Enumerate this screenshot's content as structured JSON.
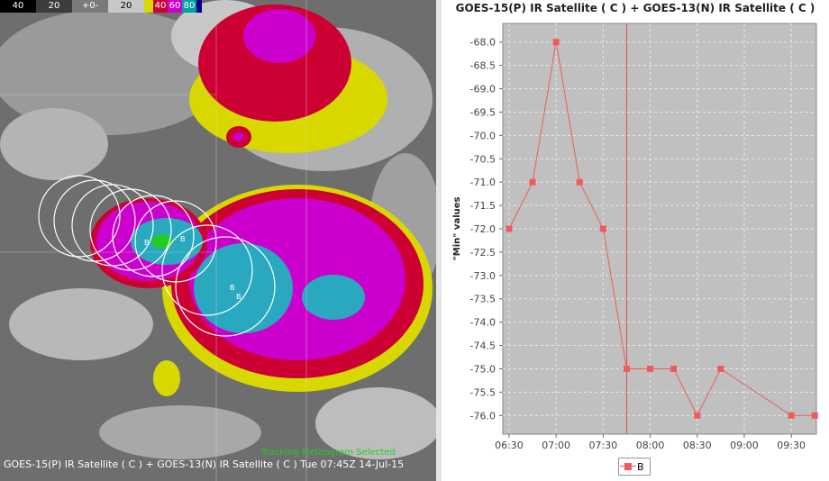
{
  "map": {
    "colorbar": [
      {
        "label": "40",
        "color": "#000000"
      },
      {
        "label": "20",
        "color": "#3c3c3c"
      },
      {
        "label": "+0-",
        "color": "#7a7a7a"
      },
      {
        "label": "20",
        "color": "#c8c8c8"
      },
      {
        "label": "",
        "color": "#d8d800"
      },
      {
        "label": "40",
        "color": "#cc0033"
      },
      {
        "label": "60",
        "color": "#cc00cc"
      },
      {
        "label": "80",
        "color": "#00a0a0"
      },
      {
        "label": "",
        "color": "#000080"
      }
    ],
    "caption": "GOES-15(P) IR Satellite ( C )  + GOES-13(N) IR Satellite ( C )   Tue 07:45Z 14-Jul-15",
    "overlay_text": "Tracking Meteogram Selected",
    "marker_label": "B"
  },
  "chart_data": {
    "type": "line",
    "title": "GOES-15(P) IR Satellite ( C )  + GOES-13(N) IR Satellite ( C )",
    "ylabel": "\"Min\" values",
    "xlabel": "",
    "x_ticks": [
      "06:30",
      "07:00",
      "07:30",
      "08:00",
      "08:30",
      "09:00",
      "09:30"
    ],
    "y_ticks": [
      "-68.0",
      "-68.5",
      "-69.0",
      "-69.5",
      "-70.0",
      "-70.5",
      "-71.0",
      "-71.5",
      "-72.0",
      "-72.5",
      "-73.0",
      "-73.5",
      "-74.0",
      "-74.5",
      "-75.0",
      "-75.5",
      "-76.0"
    ],
    "ylim": [
      -76.4,
      -67.6
    ],
    "xlim": [
      "06:26",
      "09:46"
    ],
    "grid": true,
    "legend_position": "bottom",
    "series": [
      {
        "name": "B",
        "color": "#f05a5a",
        "x": [
          "06:30",
          "06:45",
          "07:00",
          "07:15",
          "07:30",
          "07:45",
          "08:00",
          "08:15",
          "08:30",
          "08:45",
          "09:30",
          "09:45"
        ],
        "values": [
          -72.0,
          -71.0,
          -68.0,
          -71.0,
          -72.0,
          -75.0,
          -75.0,
          -75.0,
          -76.0,
          -75.0,
          -76.0,
          -76.0
        ]
      }
    ],
    "cursor_time": "07:45"
  }
}
